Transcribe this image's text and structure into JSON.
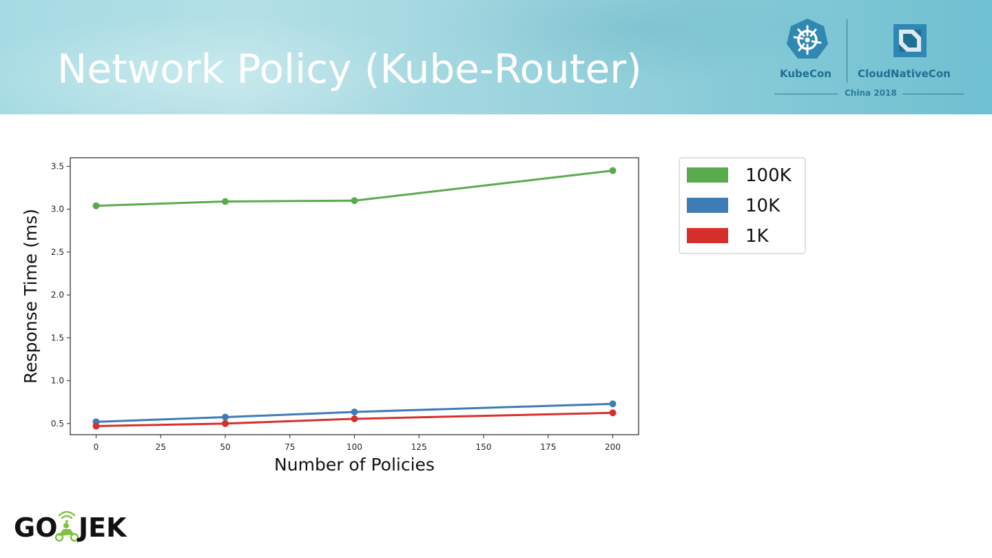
{
  "slide": {
    "title": "Network Policy (Kube-Router)"
  },
  "event_logo": {
    "left": "KubeCon",
    "right": "CloudNativeCon",
    "subtitle": "China 2018"
  },
  "brand_logo": {
    "text_left": "GO",
    "text_right": "JEK",
    "accent_color": "#7ec33e"
  },
  "chart_data": {
    "type": "line",
    "title": "",
    "xlabel": "Number of Policies",
    "ylabel": "Response Time (ms)",
    "xlim": [
      -10,
      210
    ],
    "ylim": [
      0.37,
      3.6
    ],
    "xticks": [
      0,
      25,
      50,
      75,
      100,
      125,
      150,
      175,
      200
    ],
    "yticks": [
      0.5,
      1.0,
      1.5,
      2.0,
      2.5,
      3.0,
      3.5
    ],
    "x": [
      0,
      50,
      100,
      200
    ],
    "series": [
      {
        "name": "100K",
        "color": "#5aaa4e",
        "values": [
          3.04,
          3.09,
          3.1,
          3.45
        ]
      },
      {
        "name": "10K",
        "color": "#3f7bb5",
        "values": [
          0.52,
          0.575,
          0.635,
          0.73
        ]
      },
      {
        "name": "1K",
        "color": "#d6302b",
        "values": [
          0.47,
          0.5,
          0.555,
          0.625
        ]
      }
    ],
    "grid": false,
    "legend_position": "outside-right"
  }
}
